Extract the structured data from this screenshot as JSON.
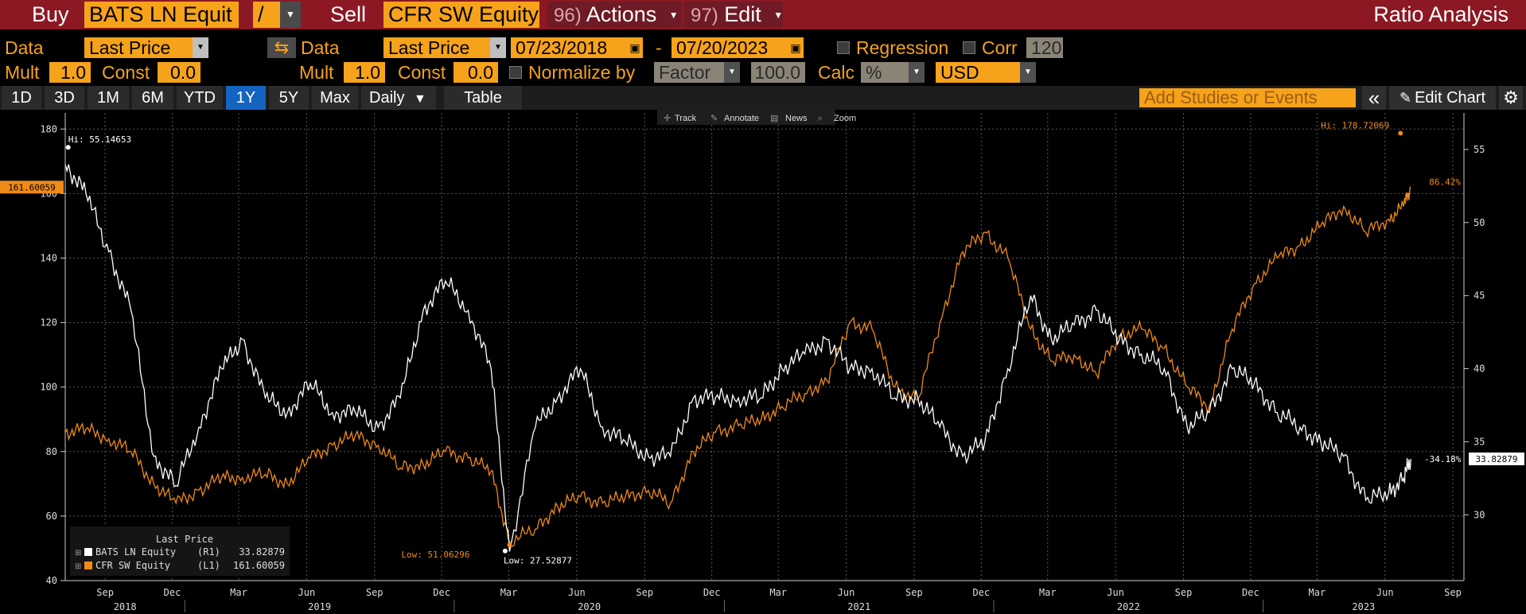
{
  "header": {
    "buy_label": "Buy",
    "buy_security": "BATS LN Equit",
    "operator": "/",
    "sell_label": "Sell",
    "sell_security": "CFR SW Equity",
    "actions_num": "96)",
    "actions_label": "Actions",
    "edit_num": "97)",
    "edit_label": "Edit",
    "title": "Ratio Analysis"
  },
  "settings": {
    "left_data_label": "Data",
    "left_data_value": "Last Price",
    "left_mult_label": "Mult",
    "left_mult_value": "1.0",
    "left_const_label": "Const",
    "left_const_value": "0.0",
    "right_data_label": "Data",
    "right_data_value": "Last Price",
    "start_date": "07/23/2018",
    "date_sep": "-",
    "end_date": "07/20/2023",
    "regression_label": "Regression",
    "corr_label": "Corr",
    "corr_value": "120",
    "right_mult_label": "Mult",
    "right_mult_value": "1.0",
    "right_const_label": "Const",
    "right_const_value": "0.0",
    "normalize_label": "Normalize by",
    "normalize_value": "Factor",
    "normalize_amount": "100.0",
    "calc_label": "Calc",
    "calc_value": "%",
    "currency": "USD"
  },
  "range_bar": {
    "ranges": [
      "1D",
      "3D",
      "1M",
      "6M",
      "YTD",
      "1Y",
      "5Y",
      "Max"
    ],
    "active": "1Y",
    "frequency": "Daily",
    "table_label": "Table",
    "studies_placeholder": "Add Studies or Events",
    "collapse_glyph": "«",
    "edit_chart_label": "Edit Chart"
  },
  "chart_toolbar": {
    "track": "Track",
    "annotate": "Annotate",
    "news": "News",
    "zoom": "Zoom"
  },
  "chart_data": {
    "type": "line",
    "x_months": [
      "Sep",
      "Dec",
      "Mar",
      "Jun",
      "Sep",
      "Dec",
      "Mar",
      "Jun",
      "Sep",
      "Dec",
      "Mar",
      "Jun",
      "Sep",
      "Dec",
      "Mar",
      "Jun",
      "Sep",
      "Dec",
      "Mar",
      "Jun",
      "Sep"
    ],
    "x_years": [
      "2018",
      "2019",
      "2020",
      "2021",
      "2022",
      "2023"
    ],
    "xlim": [
      "2018-07-23",
      "2023-09-30"
    ],
    "left_axis": {
      "ticks": [
        40,
        60,
        80,
        100,
        120,
        140,
        160,
        180
      ],
      "ylim": [
        40,
        185
      ],
      "current_label": "161.60059"
    },
    "right_axis": {
      "ticks": [
        30,
        35,
        40,
        45,
        50,
        55
      ],
      "ylim": [
        25.5,
        57.5
      ],
      "current_label": "33.82879"
    },
    "grid": true,
    "series": [
      {
        "name": "CFR SW Equity",
        "axis": "left",
        "color": "#f08a18",
        "x": [
          "2018-07-23",
          "2018-08-20",
          "2018-09-20",
          "2018-10-20",
          "2018-11-20",
          "2018-12-20",
          "2019-01-20",
          "2019-02-20",
          "2019-03-20",
          "2019-04-20",
          "2019-05-20",
          "2019-06-20",
          "2019-07-20",
          "2019-08-20",
          "2019-09-20",
          "2019-10-20",
          "2019-11-20",
          "2019-12-20",
          "2020-01-20",
          "2020-02-20",
          "2020-03-16",
          "2020-04-20",
          "2020-05-20",
          "2020-06-20",
          "2020-07-20",
          "2020-08-20",
          "2020-09-20",
          "2020-10-20",
          "2020-11-20",
          "2020-12-20",
          "2021-01-20",
          "2021-02-20",
          "2021-03-20",
          "2021-04-20",
          "2021-05-20",
          "2021-06-20",
          "2021-07-20",
          "2021-08-20",
          "2021-09-20",
          "2021-10-20",
          "2021-11-20",
          "2021-12-20",
          "2022-01-20",
          "2022-02-20",
          "2022-03-20",
          "2022-04-20",
          "2022-05-20",
          "2022-06-20",
          "2022-07-20",
          "2022-08-20",
          "2022-09-20",
          "2022-10-20",
          "2022-11-20",
          "2022-12-20",
          "2023-01-20",
          "2023-02-20",
          "2023-03-20",
          "2023-04-20",
          "2023-05-20",
          "2023-06-20",
          "2023-07-10",
          "2023-07-20"
        ],
        "values": [
          86,
          87,
          84,
          80,
          70,
          64,
          68,
          72,
          72,
          73,
          70,
          78,
          82,
          85,
          82,
          75,
          76,
          80,
          78,
          74,
          52,
          56,
          63,
          66,
          64,
          66,
          68,
          64,
          80,
          86,
          88,
          90,
          94,
          98,
          102,
          120,
          118,
          100,
          96,
          120,
          142,
          148,
          140,
          118,
          108,
          110,
          104,
          116,
          118,
          112,
          100,
          94,
          118,
          132,
          140,
          144,
          150,
          156,
          148,
          152,
          156,
          162
        ],
        "hi_label": "Hi: 178.72069",
        "hi_x": "2023-07-06",
        "hi_y": 178.72069,
        "low_label": "Low: 51.06296",
        "low_x": "2020-03-16",
        "low_y": 51.06296,
        "change_label": "86.42%"
      },
      {
        "name": "BATS LN Equity",
        "axis": "right",
        "color": "#ffffff",
        "x": [
          "2018-07-23",
          "2018-08-20",
          "2018-09-20",
          "2018-10-20",
          "2018-11-20",
          "2018-12-20",
          "2019-01-20",
          "2019-02-20",
          "2019-03-20",
          "2019-04-20",
          "2019-05-20",
          "2019-06-20",
          "2019-07-20",
          "2019-08-20",
          "2019-09-20",
          "2019-10-20",
          "2019-11-20",
          "2019-12-20",
          "2020-01-20",
          "2020-02-20",
          "2020-03-16",
          "2020-04-20",
          "2020-05-20",
          "2020-06-20",
          "2020-07-20",
          "2020-08-20",
          "2020-09-20",
          "2020-10-20",
          "2020-11-20",
          "2020-12-20",
          "2021-01-20",
          "2021-02-20",
          "2021-03-20",
          "2021-04-20",
          "2021-05-20",
          "2021-06-20",
          "2021-07-20",
          "2021-08-20",
          "2021-09-20",
          "2021-10-20",
          "2021-11-20",
          "2021-12-20",
          "2022-01-20",
          "2022-02-20",
          "2022-03-20",
          "2022-04-20",
          "2022-05-20",
          "2022-06-20",
          "2022-07-20",
          "2022-08-20",
          "2022-09-20",
          "2022-10-20",
          "2022-11-20",
          "2022-12-20",
          "2023-01-20",
          "2023-02-20",
          "2023-03-20",
          "2023-04-20",
          "2023-05-20",
          "2023-06-20",
          "2023-07-10",
          "2023-07-20"
        ],
        "values": [
          54,
          52,
          48,
          44,
          34,
          32,
          36,
          40,
          42,
          38,
          37,
          39,
          37,
          37,
          36,
          38,
          44,
          46,
          44,
          40,
          27.5,
          36,
          38,
          40,
          36,
          35,
          34,
          34,
          38,
          38,
          38,
          38,
          40,
          41,
          42,
          40,
          40,
          38,
          38,
          36,
          34,
          35,
          40,
          45,
          42,
          43,
          44,
          42,
          41,
          40,
          36,
          37,
          40,
          39,
          37,
          36,
          35,
          34,
          31,
          31.5,
          32.5,
          33.82879
        ],
        "hi_label": "Hi: 55.14653",
        "hi_x": "2018-07-27",
        "hi_y": 55.14653,
        "low_label": "Low: 27.52877",
        "low_x": "2020-03-10",
        "low_y": 27.52877,
        "change_label": "-34.18%"
      }
    ],
    "legend": {
      "title": "Last Price",
      "position": "bottom-left",
      "entries": [
        {
          "name": "BATS LN Equity",
          "axis": "(R1)",
          "value": "33.82879",
          "color": "#ffffff"
        },
        {
          "name": "CFR SW Equity",
          "axis": "(L1)",
          "value": "161.60059",
          "color": "#f08a18"
        }
      ]
    }
  }
}
